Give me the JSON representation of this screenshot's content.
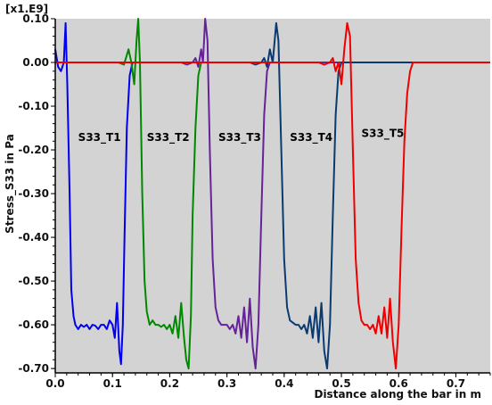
{
  "chart_data": {
    "type": "line",
    "xlabel": "Distance along the bar in m",
    "ylabel": "Stress_S33 in Pa",
    "y_multiplier": "[x1.E9]",
    "xlim": [
      0,
      0.76
    ],
    "ylim": [
      -0.71,
      0.1
    ],
    "x_ticks": [
      "0.0",
      "0.1",
      "0.2",
      "0.3",
      "0.4",
      "0.5",
      "0.6",
      "0.7"
    ],
    "x_tick_values": [
      0.0,
      0.1,
      0.2,
      0.3,
      0.4,
      0.5,
      0.6,
      0.7
    ],
    "y_ticks": [
      "0.10",
      "0.00",
      "-0.10",
      "-0.20",
      "-0.30",
      "-0.40",
      "-0.50",
      "-0.60",
      "-0.70"
    ],
    "y_tick_values": [
      0.1,
      0.0,
      -0.1,
      -0.2,
      -0.3,
      -0.4,
      -0.5,
      -0.6,
      -0.7
    ],
    "grid": false,
    "background": "#d3d3d3",
    "series": [
      {
        "name": "S33_T1",
        "color": "#0000ee",
        "label_at": [
          0.04,
          -0.18
        ],
        "points": [
          [
            0.0,
            0.03
          ],
          [
            0.005,
            -0.01
          ],
          [
            0.01,
            -0.02
          ],
          [
            0.015,
            0.0
          ],
          [
            0.018,
            0.09
          ],
          [
            0.021,
            -0.05
          ],
          [
            0.025,
            -0.3
          ],
          [
            0.028,
            -0.52
          ],
          [
            0.032,
            -0.58
          ],
          [
            0.035,
            -0.6
          ],
          [
            0.04,
            -0.61
          ],
          [
            0.045,
            -0.6
          ],
          [
            0.05,
            -0.605
          ],
          [
            0.055,
            -0.6
          ],
          [
            0.06,
            -0.61
          ],
          [
            0.065,
            -0.6
          ],
          [
            0.07,
            -0.602
          ],
          [
            0.075,
            -0.61
          ],
          [
            0.08,
            -0.6
          ],
          [
            0.085,
            -0.6
          ],
          [
            0.09,
            -0.61
          ],
          [
            0.095,
            -0.59
          ],
          [
            0.1,
            -0.6
          ],
          [
            0.104,
            -0.63
          ],
          [
            0.108,
            -0.55
          ],
          [
            0.112,
            -0.66
          ],
          [
            0.115,
            -0.69
          ],
          [
            0.118,
            -0.6
          ],
          [
            0.121,
            -0.4
          ],
          [
            0.125,
            -0.15
          ],
          [
            0.13,
            -0.03
          ],
          [
            0.135,
            0.0
          ],
          [
            0.145,
            0.0
          ],
          [
            0.16,
            0.0
          ],
          [
            0.2,
            0.0
          ],
          [
            0.3,
            0.0
          ],
          [
            0.4,
            0.0
          ],
          [
            0.5,
            0.0
          ],
          [
            0.6,
            0.0
          ],
          [
            0.7,
            0.0
          ],
          [
            0.76,
            0.0
          ]
        ]
      },
      {
        "name": "S33_T2",
        "color": "#008800",
        "label_at": [
          0.16,
          -0.18
        ],
        "points": [
          [
            0.0,
            0.0
          ],
          [
            0.03,
            0.0
          ],
          [
            0.05,
            0.0
          ],
          [
            0.07,
            0.0
          ],
          [
            0.09,
            0.0
          ],
          [
            0.11,
            0.0
          ],
          [
            0.12,
            -0.005
          ],
          [
            0.128,
            0.03
          ],
          [
            0.133,
            0.0
          ],
          [
            0.138,
            -0.05
          ],
          [
            0.142,
            0.05
          ],
          [
            0.145,
            0.1
          ],
          [
            0.148,
            0.0
          ],
          [
            0.152,
            -0.3
          ],
          [
            0.156,
            -0.5
          ],
          [
            0.16,
            -0.57
          ],
          [
            0.165,
            -0.6
          ],
          [
            0.17,
            -0.59
          ],
          [
            0.175,
            -0.6
          ],
          [
            0.18,
            -0.6
          ],
          [
            0.185,
            -0.605
          ],
          [
            0.19,
            -0.6
          ],
          [
            0.195,
            -0.61
          ],
          [
            0.2,
            -0.6
          ],
          [
            0.205,
            -0.62
          ],
          [
            0.21,
            -0.58
          ],
          [
            0.215,
            -0.63
          ],
          [
            0.22,
            -0.55
          ],
          [
            0.225,
            -0.63
          ],
          [
            0.229,
            -0.68
          ],
          [
            0.233,
            -0.7
          ],
          [
            0.237,
            -0.58
          ],
          [
            0.24,
            -0.35
          ],
          [
            0.245,
            -0.15
          ],
          [
            0.25,
            -0.03
          ],
          [
            0.255,
            0.0
          ],
          [
            0.27,
            0.0
          ],
          [
            0.3,
            0.0
          ],
          [
            0.4,
            0.0
          ],
          [
            0.5,
            0.0
          ],
          [
            0.6,
            0.0
          ],
          [
            0.7,
            0.0
          ],
          [
            0.76,
            0.0
          ]
        ]
      },
      {
        "name": "S33_T3",
        "color": "#662299",
        "label_at": [
          0.285,
          -0.18
        ],
        "points": [
          [
            0.0,
            0.0
          ],
          [
            0.1,
            0.0
          ],
          [
            0.15,
            0.0
          ],
          [
            0.2,
            0.0
          ],
          [
            0.22,
            0.0
          ],
          [
            0.23,
            -0.005
          ],
          [
            0.24,
            0.0
          ],
          [
            0.245,
            0.01
          ],
          [
            0.25,
            -0.01
          ],
          [
            0.255,
            0.03
          ],
          [
            0.258,
            0.0
          ],
          [
            0.262,
            0.1
          ],
          [
            0.266,
            0.05
          ],
          [
            0.27,
            -0.2
          ],
          [
            0.275,
            -0.45
          ],
          [
            0.28,
            -0.56
          ],
          [
            0.285,
            -0.59
          ],
          [
            0.29,
            -0.6
          ],
          [
            0.3,
            -0.6
          ],
          [
            0.305,
            -0.61
          ],
          [
            0.31,
            -0.6
          ],
          [
            0.315,
            -0.62
          ],
          [
            0.32,
            -0.58
          ],
          [
            0.325,
            -0.63
          ],
          [
            0.33,
            -0.56
          ],
          [
            0.335,
            -0.64
          ],
          [
            0.34,
            -0.54
          ],
          [
            0.345,
            -0.65
          ],
          [
            0.35,
            -0.7
          ],
          [
            0.355,
            -0.6
          ],
          [
            0.36,
            -0.35
          ],
          [
            0.365,
            -0.12
          ],
          [
            0.37,
            -0.02
          ],
          [
            0.375,
            0.0
          ],
          [
            0.4,
            0.0
          ],
          [
            0.5,
            0.0
          ],
          [
            0.6,
            0.0
          ],
          [
            0.7,
            0.0
          ],
          [
            0.76,
            0.0
          ]
        ]
      },
      {
        "name": "S33_T4",
        "color": "#0a3a70",
        "label_at": [
          0.41,
          -0.18
        ],
        "points": [
          [
            0.0,
            0.0
          ],
          [
            0.2,
            0.0
          ],
          [
            0.3,
            0.0
          ],
          [
            0.34,
            0.0
          ],
          [
            0.35,
            -0.005
          ],
          [
            0.36,
            0.0
          ],
          [
            0.365,
            0.01
          ],
          [
            0.37,
            -0.01
          ],
          [
            0.375,
            0.03
          ],
          [
            0.38,
            0.0
          ],
          [
            0.386,
            0.09
          ],
          [
            0.39,
            0.05
          ],
          [
            0.395,
            -0.2
          ],
          [
            0.4,
            -0.45
          ],
          [
            0.405,
            -0.56
          ],
          [
            0.41,
            -0.59
          ],
          [
            0.42,
            -0.6
          ],
          [
            0.425,
            -0.6
          ],
          [
            0.43,
            -0.61
          ],
          [
            0.435,
            -0.6
          ],
          [
            0.44,
            -0.62
          ],
          [
            0.445,
            -0.58
          ],
          [
            0.45,
            -0.63
          ],
          [
            0.455,
            -0.56
          ],
          [
            0.46,
            -0.64
          ],
          [
            0.465,
            -0.55
          ],
          [
            0.47,
            -0.66
          ],
          [
            0.475,
            -0.7
          ],
          [
            0.48,
            -0.6
          ],
          [
            0.485,
            -0.35
          ],
          [
            0.49,
            -0.12
          ],
          [
            0.495,
            -0.02
          ],
          [
            0.5,
            0.0
          ],
          [
            0.6,
            0.0
          ],
          [
            0.7,
            0.0
          ],
          [
            0.76,
            0.0
          ]
        ]
      },
      {
        "name": "S33_T5",
        "color": "#ee0000",
        "label_at": [
          0.535,
          -0.17
        ],
        "points": [
          [
            0.0,
            0.0
          ],
          [
            0.3,
            0.0
          ],
          [
            0.4,
            0.0
          ],
          [
            0.46,
            0.0
          ],
          [
            0.47,
            -0.005
          ],
          [
            0.48,
            0.0
          ],
          [
            0.485,
            0.01
          ],
          [
            0.49,
            -0.02
          ],
          [
            0.495,
            0.0
          ],
          [
            0.5,
            -0.05
          ],
          [
            0.505,
            0.03
          ],
          [
            0.51,
            0.09
          ],
          [
            0.515,
            0.06
          ],
          [
            0.52,
            -0.2
          ],
          [
            0.525,
            -0.45
          ],
          [
            0.53,
            -0.55
          ],
          [
            0.535,
            -0.59
          ],
          [
            0.54,
            -0.6
          ],
          [
            0.545,
            -0.6
          ],
          [
            0.55,
            -0.61
          ],
          [
            0.555,
            -0.6
          ],
          [
            0.56,
            -0.62
          ],
          [
            0.565,
            -0.58
          ],
          [
            0.57,
            -0.62
          ],
          [
            0.575,
            -0.56
          ],
          [
            0.58,
            -0.63
          ],
          [
            0.585,
            -0.54
          ],
          [
            0.59,
            -0.64
          ],
          [
            0.595,
            -0.7
          ],
          [
            0.6,
            -0.6
          ],
          [
            0.605,
            -0.38
          ],
          [
            0.61,
            -0.18
          ],
          [
            0.615,
            -0.07
          ],
          [
            0.62,
            -0.02
          ],
          [
            0.625,
            0.0
          ],
          [
            0.7,
            0.0
          ],
          [
            0.76,
            0.0
          ]
        ]
      }
    ]
  }
}
